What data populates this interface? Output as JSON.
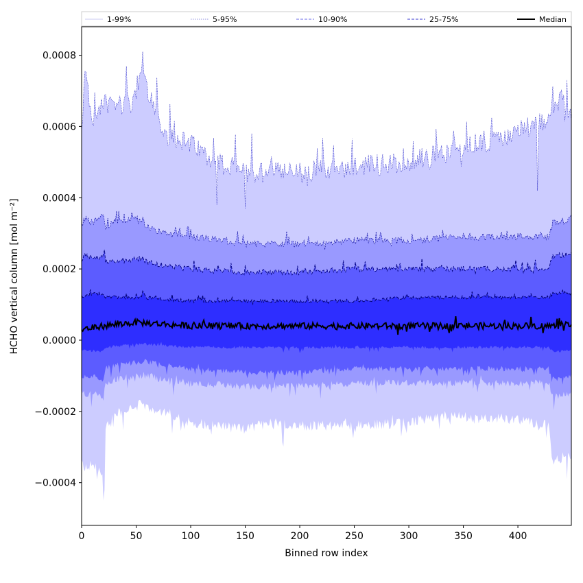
{
  "chart_data": {
    "type": "area",
    "xlabel": "Binned row index",
    "ylabel": "HCHO vertical column [mol m⁻²]",
    "xlim": [
      0,
      449
    ],
    "ylim": [
      -0.00052,
      0.00088
    ],
    "x_ticks": [
      0,
      50,
      100,
      150,
      200,
      250,
      300,
      350,
      400
    ],
    "x_tick_labels": [
      "0",
      "50",
      "100",
      "150",
      "200",
      "250",
      "300",
      "350",
      "400"
    ],
    "y_ticks": [
      -0.0004,
      -0.0002,
      0.0,
      0.0002,
      0.0004,
      0.0006,
      0.0008
    ],
    "y_tick_labels": [
      "−0.0004",
      "−0.0002",
      "0.0000",
      "0.0002",
      "0.0004",
      "0.0006",
      "0.0008"
    ],
    "grid": false,
    "legend_placement": "top (above plot, single row)",
    "legend": [
      {
        "label": "1-99%",
        "color": "#c8c8f0",
        "style": "thin-solid"
      },
      {
        "label": "5-95%",
        "color": "#9090e0",
        "style": "dotted"
      },
      {
        "label": "10-90%",
        "color": "#6a6ae8",
        "style": "dashed"
      },
      {
        "label": "25-75%",
        "color": "#3a3ad0",
        "style": "dashed"
      },
      {
        "label": "Median",
        "color": "#000000",
        "style": "solid"
      }
    ],
    "band_fill_colors": [
      "#ccccff",
      "#9999ff",
      "#5c5cff",
      "#2e2eff"
    ],
    "series": [
      {
        "name": "1-99%",
        "anchor_x": [
          0,
          3,
          10,
          20,
          22,
          30,
          45,
          55,
          60,
          75,
          100,
          125,
          150,
          175,
          200,
          250,
          300,
          340,
          360,
          390,
          410,
          428,
          432,
          440,
          449
        ],
        "upper": [
          0.00058,
          0.00075,
          0.00062,
          0.00068,
          0.00066,
          0.00067,
          0.00066,
          0.00075,
          0.0007,
          0.00058,
          0.00055,
          0.0005,
          0.00047,
          0.00049,
          0.00047,
          0.00049,
          0.0005,
          0.00053,
          0.00055,
          0.00057,
          0.0006,
          0.00061,
          0.00065,
          0.00068,
          0.00063
        ],
        "lower": [
          -0.00035,
          -0.00036,
          -0.00035,
          -0.00038,
          -0.00025,
          -0.00021,
          -0.00019,
          -0.00018,
          -0.00019,
          -0.0002,
          -0.00023,
          -0.00024,
          -0.00025,
          -0.00023,
          -0.00024,
          -0.00024,
          -0.00023,
          -0.00021,
          -0.00022,
          -0.00022,
          -0.00023,
          -0.00024,
          -0.00034,
          -0.00033,
          -0.00032
        ]
      },
      {
        "name": "5-95%",
        "anchor_x": [
          0,
          3,
          10,
          20,
          22,
          30,
          55,
          60,
          75,
          100,
          150,
          200,
          250,
          300,
          350,
          410,
          428,
          432,
          449
        ],
        "upper": [
          0.00032,
          0.00034,
          0.00033,
          0.00035,
          0.00032,
          0.00033,
          0.00034,
          0.00032,
          0.0003,
          0.00029,
          0.00027,
          0.00027,
          0.00028,
          0.00028,
          0.00029,
          0.00029,
          0.00029,
          0.00033,
          0.00034
        ],
        "lower": [
          -0.00015,
          -0.00015,
          -0.00015,
          -0.00016,
          -0.00012,
          -0.00011,
          -0.0001,
          -0.0001,
          -0.00011,
          -0.00012,
          -0.00013,
          -0.00013,
          -0.00012,
          -0.00012,
          -0.00012,
          -0.00012,
          -0.00012,
          -0.00016,
          -0.00015
        ]
      },
      {
        "name": "10-90%",
        "anchor_x": [
          0,
          3,
          10,
          20,
          22,
          30,
          55,
          60,
          75,
          100,
          150,
          200,
          250,
          300,
          350,
          410,
          428,
          432,
          449
        ],
        "upper": [
          0.00022,
          0.00024,
          0.00023,
          0.00024,
          0.00022,
          0.00022,
          0.00023,
          0.00022,
          0.00021,
          0.0002,
          0.00019,
          0.00019,
          0.0002,
          0.0002,
          0.0002,
          0.0002,
          0.0002,
          0.00024,
          0.00024
        ],
        "lower": [
          -0.0001,
          -0.0001,
          -0.0001,
          -0.00011,
          -8e-05,
          -7e-05,
          -6e-05,
          -6e-05,
          -7e-05,
          -8e-05,
          -9e-05,
          -9e-05,
          -8e-05,
          -8e-05,
          -8e-05,
          -8e-05,
          -8e-05,
          -0.00011,
          -0.0001
        ]
      },
      {
        "name": "25-75%",
        "anchor_x": [
          0,
          10,
          20,
          22,
          55,
          100,
          150,
          200,
          250,
          300,
          350,
          410,
          428,
          432,
          449
        ],
        "upper": [
          0.00012,
          0.00013,
          0.00013,
          0.00012,
          0.00012,
          0.00011,
          0.00011,
          0.00011,
          0.00011,
          0.00012,
          0.00012,
          0.00012,
          0.00012,
          0.00013,
          0.00013
        ],
        "lower": [
          -3e-05,
          -3e-05,
          -3e-05,
          -2e-05,
          -1e-05,
          -2e-05,
          -2e-05,
          -2e-05,
          -2e-05,
          -2e-05,
          -2e-05,
          -2e-05,
          -2e-05,
          -3e-05,
          -3e-05
        ]
      },
      {
        "name": "Median",
        "anchor_x": [
          0,
          20,
          50,
          100,
          150,
          200,
          250,
          300,
          350,
          400,
          428,
          449
        ],
        "values": [
          3e-05,
          4e-05,
          5e-05,
          4e-05,
          4e-05,
          4e-05,
          4e-05,
          4e-05,
          4e-05,
          4e-05,
          4e-05,
          4e-05
        ]
      }
    ]
  }
}
